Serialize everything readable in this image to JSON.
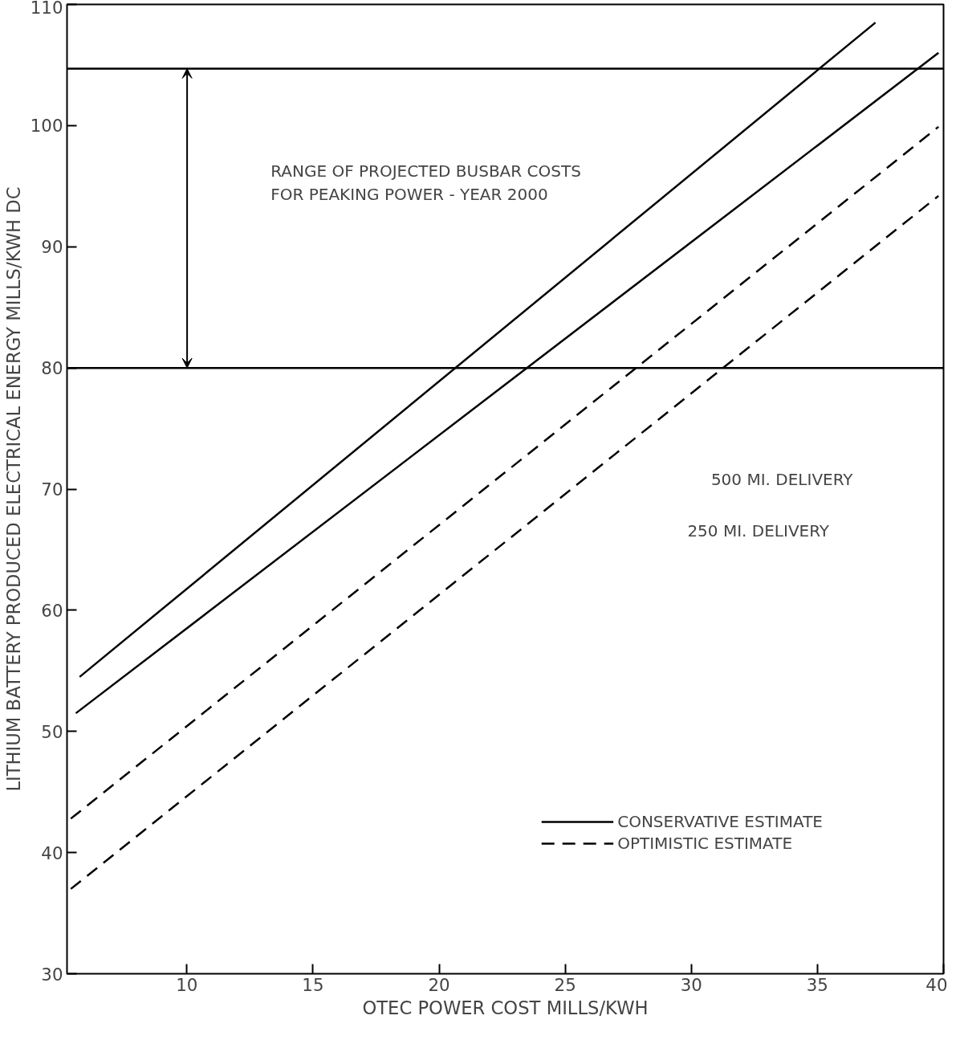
{
  "chart_data": {
    "type": "line",
    "xlabel": "OTEC POWER COST MILLS/KWH",
    "ylabel": "LITHIUM BATTERY PRODUCED ELECTRICAL ENERGY MILLS/KWH DC",
    "xlim": [
      5.25,
      40
    ],
    "ylim": [
      30,
      110
    ],
    "xticks": [
      10,
      15,
      20,
      25,
      30,
      35,
      40
    ],
    "yticks": [
      30,
      40,
      50,
      60,
      70,
      80,
      90,
      100,
      110
    ],
    "grid": false,
    "legend": "bottom right",
    "series": [
      {
        "name": "CONSERVATIVE ESTIMATE",
        "color": "#000000",
        "line_style": "solid",
        "x": [
          5.75,
          37.3
        ],
        "values": [
          54.5,
          108.5
        ]
      },
      {
        "color": "#000000",
        "line_style": "solid",
        "x": [
          5.6,
          39.8
        ],
        "values": [
          51.5,
          106
        ]
      },
      {
        "name": "OPTIMISTIC ESTIMATE",
        "color": "#000000",
        "line_style": "dashed",
        "x": [
          5.4,
          39.8
        ],
        "values": [
          42.8,
          99.9
        ]
      },
      {
        "color": "#000000",
        "line_style": "dashed",
        "x": [
          5.4,
          39.8
        ],
        "values": [
          37.0,
          94.2
        ]
      }
    ],
    "ref_lines": [
      {
        "axis": "y",
        "value": 104.7,
        "color": "#000000"
      },
      {
        "axis": "y",
        "value": 80,
        "color": "#000000"
      }
    ],
    "annotations": [
      "RANGE OF PROJECTED BUSBAR COSTS\nFOR PEAKING POWER - YEAR 2000",
      "500 MI. DELIVERY",
      "250 MI. DELIVERY"
    ]
  }
}
